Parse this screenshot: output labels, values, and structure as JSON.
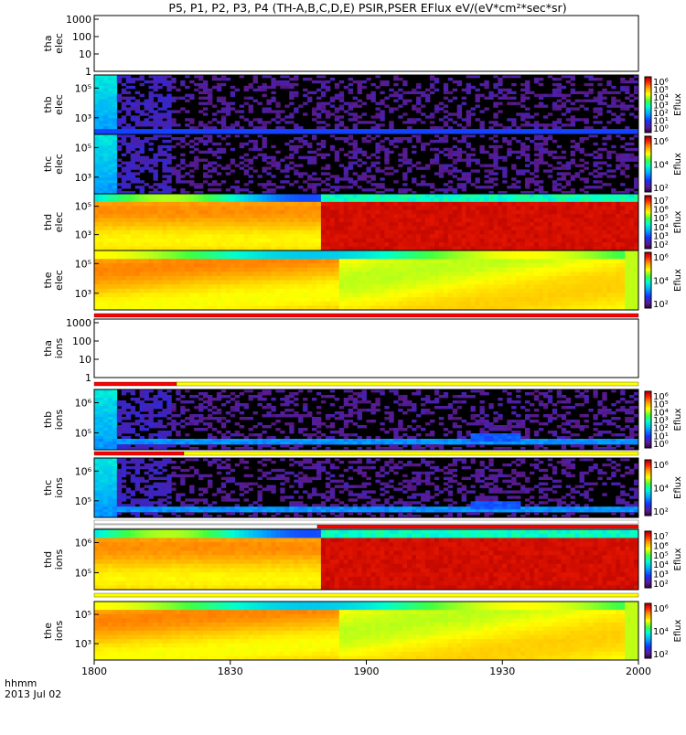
{
  "title": "P5, P1, P2, P3, P4 (TH-A,B,C,D,E) PSIR,PSER EFlux eV/(eV*cm²*sec*sr)",
  "time_axis": {
    "ticks": [
      "1800",
      "1830",
      "1900",
      "1930",
      "2000"
    ],
    "format_label": "hhmm",
    "date_label": "2013 Jul 02"
  },
  "colors": {
    "bar_red": "#ff0000",
    "bar_yellow": "#ffff00",
    "bar_white": "#ffffff"
  },
  "chart_data": [
    {
      "type": "heatmap",
      "probe": "tha",
      "species": "elec",
      "ylabel_line1": "tha",
      "ylabel_line2": "elec",
      "y_ticks": [
        "1000",
        "100",
        "10",
        "1"
      ],
      "colorbar_label": "",
      "colorbar_ticks": [],
      "pattern": "empty"
    },
    {
      "type": "heatmap",
      "probe": "thb",
      "species": "elec",
      "ylabel_line1": "thb",
      "ylabel_line2": "elec",
      "y_ticks": [
        "10⁵",
        "10³"
      ],
      "colorbar_label": "Eflux",
      "colorbar_ticks": [
        "10⁶",
        "10⁵",
        "10⁴",
        "10³",
        "10²",
        "10¹",
        "10⁰"
      ],
      "pattern": "sparse"
    },
    {
      "type": "heatmap",
      "probe": "thc",
      "species": "elec",
      "ylabel_line1": "thc",
      "ylabel_line2": "elec",
      "y_ticks": [
        "10⁵",
        "10³"
      ],
      "colorbar_label": "Eflux",
      "colorbar_ticks": [
        "10⁶",
        "10⁴",
        "10²"
      ],
      "pattern": "sparse"
    },
    {
      "type": "heatmap",
      "probe": "thd",
      "species": "elec",
      "ylabel_line1": "thd",
      "ylabel_line2": "elec",
      "y_ticks": [
        "10⁵",
        "10³"
      ],
      "colorbar_label": "Eflux",
      "colorbar_ticks": [
        "10⁷",
        "10⁶",
        "10⁵",
        "10⁴",
        "10³",
        "10²"
      ],
      "pattern": "dense_step"
    },
    {
      "type": "heatmap",
      "probe": "the",
      "species": "elec",
      "ylabel_line1": "the",
      "ylabel_line2": "elec",
      "y_ticks": [
        "10⁵",
        "10³"
      ],
      "colorbar_label": "Eflux",
      "colorbar_ticks": [
        "10⁶",
        "10⁴",
        "10²"
      ],
      "pattern": "dense_smooth"
    },
    {
      "type": "heatmap",
      "probe": "tha",
      "species": "ions",
      "ylabel_line1": "tha",
      "ylabel_line2": "ions",
      "y_ticks": [
        "1000",
        "100",
        "10",
        "1"
      ],
      "colorbar_label": "",
      "colorbar_ticks": [],
      "pattern": "empty"
    },
    {
      "type": "heatmap",
      "probe": "thb",
      "species": "ions",
      "ylabel_line1": "thb",
      "ylabel_line2": "ions",
      "y_ticks": [
        "10⁶",
        "10⁵"
      ],
      "colorbar_label": "Eflux",
      "colorbar_ticks": [
        "10⁶",
        "10⁵",
        "10⁴",
        "10³",
        "10²",
        "10¹",
        "10⁰"
      ],
      "pattern": "sparse_ions"
    },
    {
      "type": "heatmap",
      "probe": "thc",
      "species": "ions",
      "ylabel_line1": "thc",
      "ylabel_line2": "ions",
      "y_ticks": [
        "10⁶",
        "10⁵"
      ],
      "colorbar_label": "Eflux",
      "colorbar_ticks": [
        "10⁶",
        "10⁴",
        "10²"
      ],
      "pattern": "sparse_ions"
    },
    {
      "type": "heatmap",
      "probe": "thd",
      "species": "ions",
      "ylabel_line1": "thd",
      "ylabel_line2": "ions",
      "y_ticks": [
        "10⁶",
        "10⁵"
      ],
      "colorbar_label": "Eflux",
      "colorbar_ticks": [
        "10⁷",
        "10⁶",
        "10⁵",
        "10⁴",
        "10³",
        "10²"
      ],
      "pattern": "dense_step"
    },
    {
      "type": "heatmap",
      "probe": "the",
      "species": "ions",
      "ylabel_line1": "the",
      "ylabel_line2": "ions",
      "y_ticks": [
        "10⁵",
        "10³"
      ],
      "colorbar_label": "Eflux",
      "colorbar_ticks": [
        "10⁶",
        "10⁴",
        "10²"
      ],
      "pattern": "dense_smooth"
    }
  ]
}
